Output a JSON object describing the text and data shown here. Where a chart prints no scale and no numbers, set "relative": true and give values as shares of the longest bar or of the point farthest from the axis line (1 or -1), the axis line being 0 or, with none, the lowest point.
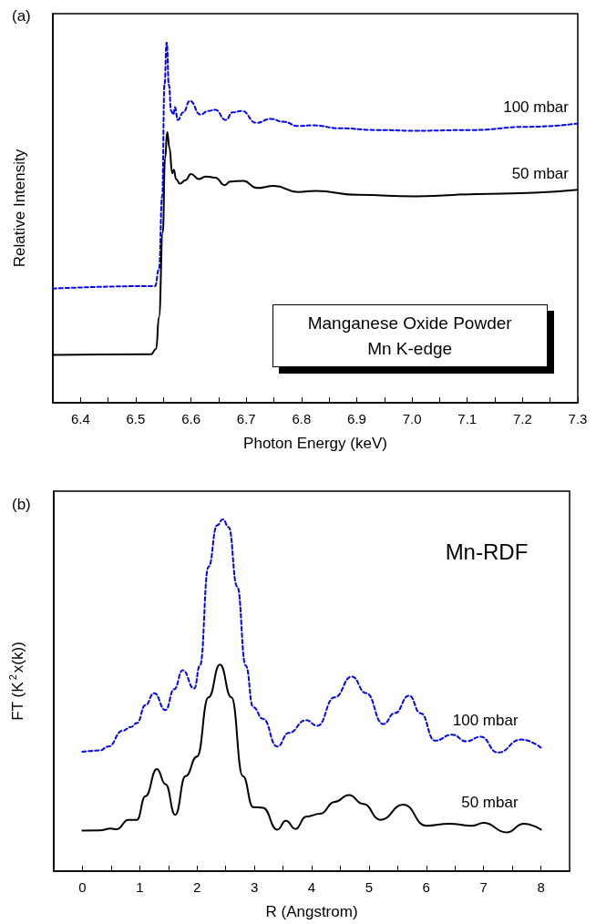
{
  "chart_data": [
    {
      "type": "line",
      "title": "(a)",
      "xlabel": "Photon Energy (keV)",
      "ylabel": "Relative Intensity",
      "relative": true,
      "marker": "none",
      "xlim": [
        6.35,
        7.3
      ],
      "xticks": [
        6.4,
        {
          "value": 6.45,
          "label": null
        },
        6.5,
        {
          "value": 6.55,
          "label": null
        },
        6.6,
        {
          "value": 6.65,
          "label": null
        },
        6.7,
        {
          "value": 6.75,
          "label": null
        },
        6.8,
        {
          "value": 6.85,
          "label": null
        },
        6.9,
        {
          "value": 6.95,
          "label": null
        },
        "7.0",
        {
          "value": 7.05,
          "label": null
        },
        7.1,
        {
          "value": 7.15,
          "label": null
        },
        7.2,
        {
          "value": 7.25,
          "label": null
        },
        7.3
      ],
      "annotations": [
        "Manganese Oxide Powder\nMn K-edge"
      ],
      "series": [
        {
          "name": "100 mbar",
          "color": "#0000ff",
          "line_style": "dashed",
          "x": [
            6.35,
            6.535,
            6.542,
            6.548,
            6.552,
            6.556,
            6.56,
            6.564,
            6.568,
            6.571,
            6.576,
            6.586,
            6.598,
            6.617,
            6.631,
            6.644,
            6.663,
            6.675,
            6.692,
            6.718,
            6.745,
            6.767,
            6.794,
            6.821,
            6.869,
            6.937,
            7.005,
            7.107,
            7.209,
            7.3
          ],
          "values": [
            0.317,
            0.324,
            0.37,
            0.575,
            0.882,
            1.0,
            0.882,
            0.81,
            0.8,
            0.82,
            0.785,
            0.806,
            0.838,
            0.8,
            0.81,
            0.813,
            0.785,
            0.806,
            0.81,
            0.777,
            0.788,
            0.78,
            0.768,
            0.77,
            0.762,
            0.757,
            0.755,
            0.757,
            0.766,
            0.775
          ]
        },
        {
          "name": "50 mbar",
          "color": "#000000",
          "line_style": "solid",
          "x": [
            6.35,
            6.528,
            6.537,
            6.542,
            6.549,
            6.553,
            6.557,
            6.561,
            6.566,
            6.569,
            6.573,
            6.58,
            6.59,
            6.6,
            6.614,
            6.627,
            6.644,
            6.661,
            6.671,
            6.695,
            6.719,
            6.75,
            6.794,
            6.825,
            6.903,
            7.005,
            7.142,
            7.3
          ],
          "values": [
            0.133,
            0.135,
            0.15,
            0.237,
            0.473,
            0.678,
            0.751,
            0.708,
            0.637,
            0.647,
            0.621,
            0.608,
            0.618,
            0.635,
            0.621,
            0.628,
            0.625,
            0.604,
            0.614,
            0.616,
            0.596,
            0.602,
            0.585,
            0.588,
            0.577,
            0.573,
            0.58,
            0.591
          ]
        }
      ]
    },
    {
      "type": "line",
      "title": "(b)",
      "xlabel": "R (Angstrom)",
      "ylabel": "FT (K$^{2}$x(k))",
      "relative": true,
      "marker": "none",
      "xlim": [
        -0.5,
        8.5
      ],
      "xticks": [
        0,
        {
          "value": 0.5,
          "label": null
        },
        1,
        {
          "value": 1.5,
          "label": null
        },
        2,
        {
          "value": 2.5,
          "label": null
        },
        3,
        {
          "value": 3.5,
          "label": null
        },
        4,
        {
          "value": 4.5,
          "label": null
        },
        5,
        {
          "value": 5.5,
          "label": null
        },
        6,
        {
          "value": 6.5,
          "label": null
        },
        7,
        {
          "value": 7.5,
          "label": null
        },
        8
      ],
      "annotations": [
        "Mn-RDF"
      ],
      "series": [
        {
          "name": "100 mbar",
          "color": "#0000ff",
          "line_style": "dashed",
          "x": [
            0,
            0.3,
            0.45,
            0.7,
            0.85,
            0.95,
            1.1,
            1.25,
            1.45,
            1.6,
            1.75,
            1.95,
            2.05,
            2.2,
            2.35,
            2.45,
            2.55,
            2.7,
            2.85,
            2.98,
            3.15,
            3.4,
            3.6,
            3.9,
            4.1,
            4.4,
            4.7,
            4.95,
            5.25,
            5.45,
            5.7,
            5.9,
            6.15,
            6.45,
            6.7,
            6.95,
            7.25,
            7.65,
            8
          ],
          "values": [
            0.339,
            0.343,
            0.354,
            0.399,
            0.41,
            0.421,
            0.472,
            0.506,
            0.458,
            0.517,
            0.571,
            0.519,
            0.584,
            0.865,
            0.983,
            1.0,
            0.978,
            0.809,
            0.584,
            0.466,
            0.433,
            0.354,
            0.393,
            0.429,
            0.413,
            0.494,
            0.553,
            0.506,
            0.418,
            0.449,
            0.499,
            0.449,
            0.371,
            0.388,
            0.369,
            0.382,
            0.337,
            0.374,
            0.351
          ]
        },
        {
          "name": "50 mbar",
          "color": "#000000",
          "line_style": "solid",
          "x": [
            0,
            0.3,
            0.5,
            0.6,
            0.8,
            0.95,
            1.1,
            1.3,
            1.45,
            1.62,
            1.8,
            2.0,
            2.2,
            2.4,
            2.6,
            2.8,
            2.98,
            3.15,
            3.4,
            3.55,
            3.72,
            3.9,
            4.15,
            4.4,
            4.65,
            4.9,
            5.2,
            5.6,
            6.0,
            6.4,
            6.8,
            7.0,
            7.4,
            7.7,
            8.0
          ],
          "values": [
            0.115,
            0.116,
            0.121,
            0.119,
            0.146,
            0.146,
            0.213,
            0.29,
            0.247,
            0.16,
            0.27,
            0.326,
            0.494,
            0.587,
            0.494,
            0.27,
            0.182,
            0.18,
            0.118,
            0.143,
            0.12,
            0.155,
            0.163,
            0.197,
            0.216,
            0.191,
            0.146,
            0.189,
            0.129,
            0.135,
            0.129,
            0.137,
            0.11,
            0.135,
            0.118
          ]
        }
      ]
    }
  ]
}
